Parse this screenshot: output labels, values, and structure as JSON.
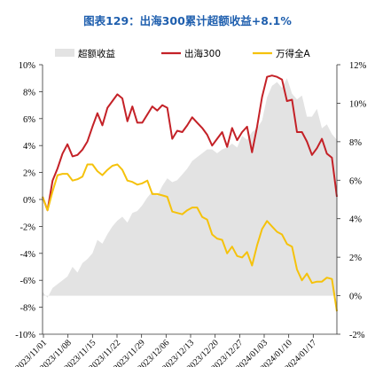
{
  "chart_data": {
    "type": "line",
    "title": "图表129：出海300累计超额收益+8.1%",
    "legend_position": "top",
    "y_left": {
      "ylim": [
        -10,
        10
      ],
      "ticks": [
        "10%",
        "8%",
        "6%",
        "4%",
        "2%",
        "0%",
        "-2%",
        "-4%",
        "-6%",
        "-8%",
        "-10%"
      ]
    },
    "y_right": {
      "ylim": [
        -2,
        12
      ],
      "ticks": [
        "12%",
        "10%",
        "8%",
        "6%",
        "4%",
        "2%",
        "0%",
        "-2%"
      ]
    },
    "x_ticks": [
      "2023/11/01",
      "2023/11/08",
      "2023/11/15",
      "2023/11/22",
      "2023/11/29",
      "2023/12/06",
      "2023/12/13",
      "2023/12/20",
      "2023/12/27",
      "2024/01/03",
      "2024/01/10",
      "2024/01/17"
    ],
    "series": [
      {
        "name": "超额收益",
        "kind": "area",
        "axis": "right",
        "color": "#e3e3e3",
        "values": [
          0.2,
          -0.1,
          0.4,
          0.6,
          0.8,
          1.0,
          1.5,
          1.2,
          1.7,
          1.9,
          2.2,
          2.9,
          2.7,
          3.2,
          3.6,
          3.9,
          4.1,
          3.8,
          4.3,
          4.4,
          4.7,
          5.1,
          5.4,
          5.2,
          5.7,
          6.1,
          5.9,
          6.0,
          6.3,
          6.6,
          7.0,
          7.2,
          7.4,
          7.6,
          7.6,
          7.4,
          7.6,
          7.7,
          7.9,
          7.7,
          8.3,
          8.1,
          8.5,
          8.7,
          9.1,
          10.3,
          10.9,
          11.1,
          10.8,
          11.3,
          10.5,
          10.2,
          10.4,
          9.3,
          9.3,
          9.7,
          8.7,
          8.9,
          8.4,
          8.1
        ]
      },
      {
        "name": "出海300",
        "kind": "line",
        "axis": "left",
        "color": "#c42127",
        "values": [
          0.2,
          -0.8,
          1.4,
          2.3,
          3.4,
          4.1,
          3.2,
          3.3,
          3.7,
          4.3,
          5.4,
          6.4,
          5.5,
          6.8,
          7.3,
          7.8,
          7.5,
          5.8,
          6.9,
          5.7,
          5.7,
          6.3,
          6.9,
          6.6,
          7.0,
          6.8,
          4.5,
          5.1,
          5.0,
          5.5,
          6.1,
          5.7,
          5.3,
          4.8,
          4.0,
          4.5,
          5.0,
          3.9,
          5.3,
          4.4,
          5.0,
          5.4,
          3.5,
          5.4,
          7.6,
          9.1,
          9.2,
          9.1,
          8.9,
          7.3,
          7.4,
          5.0,
          5.0,
          4.3,
          3.3,
          3.8,
          4.5,
          3.4,
          3.1,
          0.2
        ]
      },
      {
        "name": "万得全A",
        "kind": "line",
        "axis": "left",
        "color": "#f5c20c",
        "values": [
          0.2,
          -0.8,
          0.6,
          1.8,
          1.9,
          1.9,
          1.4,
          1.5,
          1.7,
          2.6,
          2.6,
          2.1,
          1.8,
          2.2,
          2.5,
          2.6,
          2.2,
          1.4,
          1.3,
          1.1,
          1.2,
          1.4,
          0.4,
          0.4,
          0.3,
          0.2,
          -0.9,
          -1.0,
          -1.1,
          -0.8,
          -0.6,
          -0.6,
          -1.3,
          -1.5,
          -2.6,
          -2.9,
          -3.0,
          -4.0,
          -3.5,
          -4.2,
          -4.3,
          -3.9,
          -4.9,
          -3.4,
          -2.2,
          -1.6,
          -2.0,
          -2.4,
          -2.6,
          -3.3,
          -3.5,
          -5.2,
          -6.0,
          -5.5,
          -6.2,
          -6.1,
          -6.1,
          -5.8,
          -5.9,
          -8.3
        ]
      }
    ]
  }
}
